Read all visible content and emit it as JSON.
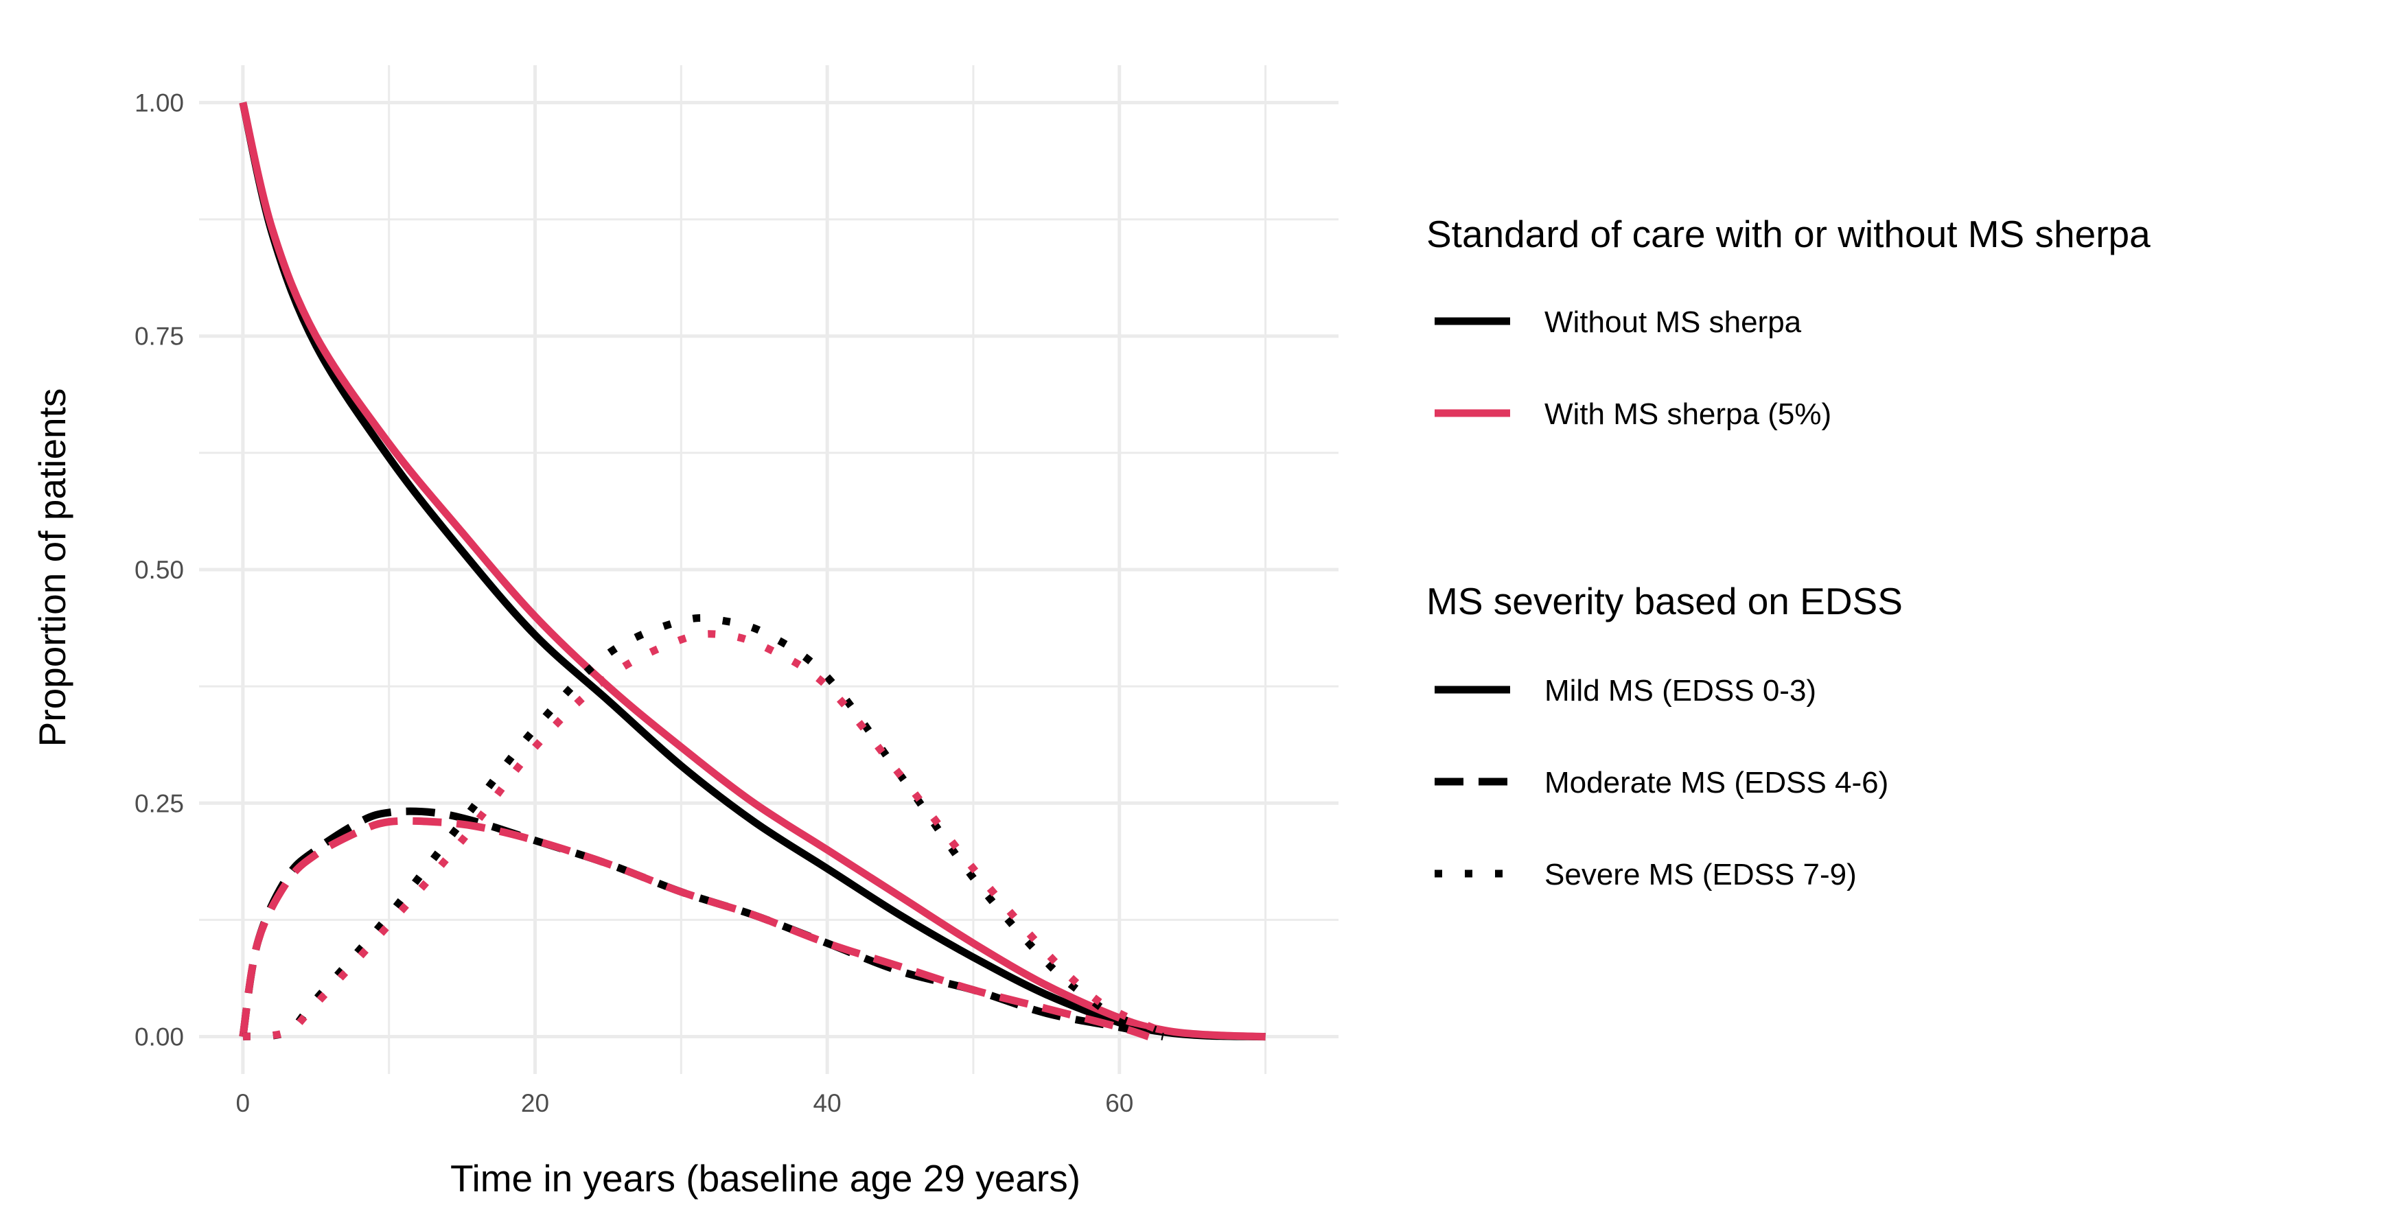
{
  "chart_data": {
    "type": "line",
    "xlabel": "Time in years (baseline age 29 years)",
    "ylabel": "Proportion of patients",
    "xlim": [
      -3,
      75
    ],
    "ylim": [
      -0.04,
      1.04
    ],
    "x_ticks": [
      0,
      20,
      40,
      60
    ],
    "x_tick_labels": [
      "0",
      "20",
      "40",
      "60"
    ],
    "y_ticks": [
      0,
      0.25,
      0.5,
      0.75,
      1.0
    ],
    "y_tick_labels": [
      "0.00",
      "0.25",
      "0.50",
      "0.75",
      "1.00"
    ],
    "grid": true,
    "colors": {
      "without": "#000000",
      "with": "#E0365E",
      "grid": "#EBEBEB",
      "background": "#FFFFFF"
    },
    "legend": {
      "placement": "right",
      "care_title": "Standard of care with or without MS sherpa",
      "care_items": [
        {
          "label": "Without MS sherpa",
          "color": "#000000"
        },
        {
          "label": "With MS sherpa (5%)",
          "color": "#E0365E"
        }
      ],
      "severity_title": "MS severity based on EDSS",
      "severity_items": [
        {
          "label": "Mild MS (EDSS 0-3)",
          "linetype": "solid"
        },
        {
          "label": "Moderate MS (EDSS 4-6)",
          "linetype": "dashed"
        },
        {
          "label": "Severe MS (EDSS 7-9)",
          "linetype": "dotted"
        }
      ]
    },
    "series": [
      {
        "name": "Mild MS - Without MS sherpa",
        "care": "without",
        "linetype": "solid",
        "x": [
          0,
          2,
          5,
          10,
          15,
          20,
          25,
          30,
          35,
          40,
          45,
          50,
          55,
          60,
          63,
          66,
          70
        ],
        "values": [
          1.0,
          0.86,
          0.74,
          0.62,
          0.52,
          0.43,
          0.36,
          0.29,
          0.23,
          0.18,
          0.13,
          0.085,
          0.045,
          0.015,
          0.005,
          0.001,
          0.0
        ]
      },
      {
        "name": "Mild MS - With MS sherpa (5%)",
        "care": "with",
        "linetype": "solid",
        "x": [
          0,
          2,
          5,
          10,
          15,
          20,
          25,
          30,
          35,
          40,
          45,
          50,
          55,
          60,
          63,
          66,
          70
        ],
        "values": [
          1.0,
          0.865,
          0.75,
          0.635,
          0.54,
          0.45,
          0.375,
          0.31,
          0.25,
          0.2,
          0.15,
          0.1,
          0.055,
          0.02,
          0.007,
          0.002,
          0.0
        ]
      },
      {
        "name": "Moderate MS - Without MS sherpa",
        "care": "without",
        "linetype": "dashed",
        "x": [
          0,
          1,
          3,
          5,
          8,
          10,
          13,
          16,
          20,
          25,
          30,
          35,
          40,
          45,
          50,
          55,
          60,
          63
        ],
        "values": [
          0.0,
          0.1,
          0.17,
          0.2,
          0.23,
          0.24,
          0.24,
          0.23,
          0.21,
          0.185,
          0.155,
          0.13,
          0.1,
          0.07,
          0.05,
          0.025,
          0.01,
          0.0
        ]
      },
      {
        "name": "Moderate MS - With MS sherpa (5%)",
        "care": "with",
        "linetype": "dashed",
        "x": [
          0,
          1,
          3,
          5,
          8,
          10,
          13,
          16,
          20,
          25,
          30,
          35,
          40,
          45,
          50,
          55,
          60,
          62
        ],
        "values": [
          0.0,
          0.1,
          0.165,
          0.195,
          0.22,
          0.23,
          0.23,
          0.225,
          0.21,
          0.185,
          0.155,
          0.13,
          0.1,
          0.075,
          0.05,
          0.03,
          0.01,
          0.0
        ]
      },
      {
        "name": "Severe MS - Without MS sherpa",
        "care": "without",
        "linetype": "dotted",
        "x": [
          0,
          3,
          5,
          10,
          15,
          20,
          25,
          30,
          33,
          36,
          40,
          45,
          50,
          55,
          58,
          60,
          63
        ],
        "values": [
          0.0,
          0.005,
          0.04,
          0.13,
          0.23,
          0.33,
          0.41,
          0.445,
          0.445,
          0.43,
          0.385,
          0.28,
          0.17,
          0.08,
          0.04,
          0.02,
          0.005
        ]
      },
      {
        "name": "Severe MS - With MS sherpa (5%)",
        "care": "with",
        "linetype": "dotted",
        "x": [
          0,
          3,
          5,
          10,
          15,
          20,
          25,
          30,
          33,
          36,
          40,
          45,
          50,
          55,
          58,
          60,
          63
        ],
        "values": [
          0.0,
          0.005,
          0.035,
          0.12,
          0.21,
          0.31,
          0.385,
          0.425,
          0.43,
          0.415,
          0.375,
          0.28,
          0.18,
          0.09,
          0.045,
          0.025,
          0.005
        ]
      }
    ]
  }
}
